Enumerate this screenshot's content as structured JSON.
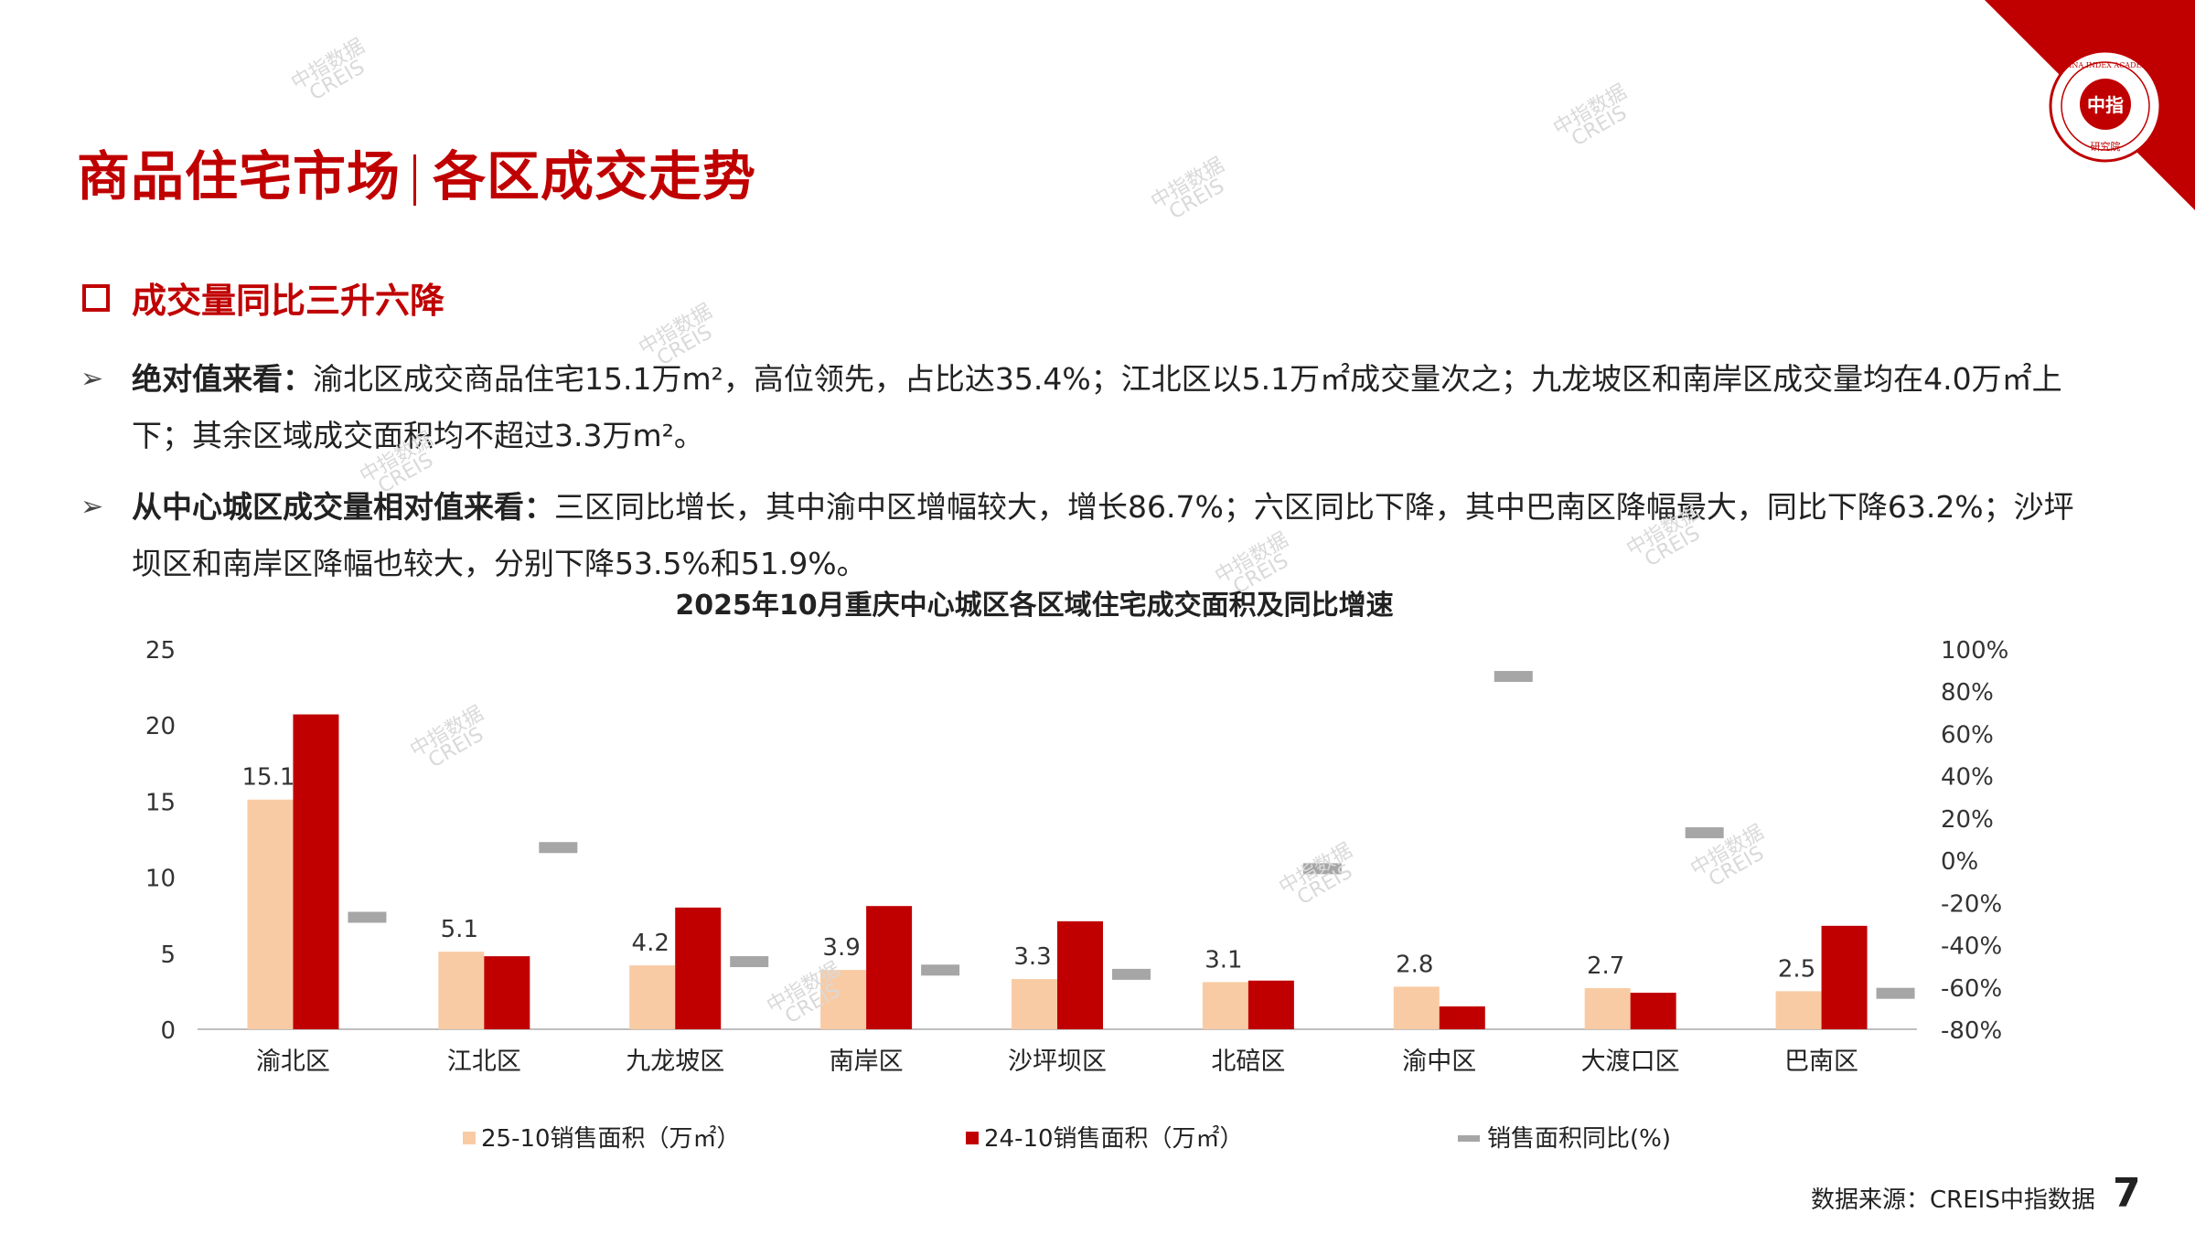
{
  "header": {
    "title_left": "商品住宅市场",
    "title_right": "各区成交走势"
  },
  "logo": {
    "text_top": "CHINA INDEX ACADEMY",
    "text_center": "中指",
    "text_bottom": "研究院"
  },
  "section": {
    "subheading": "成交量同比三升六降"
  },
  "bullets": [
    {
      "lead": "绝对值来看：",
      "text": "渝北区成交商品住宅15.1万m²，高位领先，占比达35.4%；江北区以5.1万㎡成交量次之；九龙坡区和南岸区成交量均在4.0万㎡上下；其余区域成交面积均不超过3.3万m²。"
    },
    {
      "lead": "从中心城区成交量相对值来看：",
      "text": "三区同比增长，其中渝中区增幅较大，增长86.7%；六区同比下降，其中巴南区降幅最大，同比下降63.2%；沙坪坝区和南岸区降幅也较大，分别下降53.5%和51.9%。"
    }
  ],
  "chart_data": {
    "type": "bar",
    "title": "2025年10月重庆中心城区各区域住宅成交面积及同比增速",
    "categories": [
      "渝北区",
      "江北区",
      "九龙坡区",
      "南岸区",
      "沙坪坝区",
      "北碚区",
      "渝中区",
      "大渡口区",
      "巴南区"
    ],
    "series": [
      {
        "name": "25-10销售面积（万㎡）",
        "kind": "bar",
        "axis": "left",
        "color": "#f9cba4",
        "values": [
          15.1,
          5.1,
          4.2,
          3.9,
          3.3,
          3.1,
          2.8,
          2.7,
          2.5
        ],
        "data_labels": true
      },
      {
        "name": "24-10销售面积（万㎡）",
        "kind": "bar",
        "axis": "left",
        "color": "#c00000",
        "values": [
          20.7,
          4.8,
          8.0,
          8.1,
          7.1,
          3.2,
          1.5,
          2.4,
          6.8
        ],
        "data_labels": false
      },
      {
        "name": "销售面积同比(%)",
        "kind": "marker",
        "axis": "right",
        "color": "#a6a6a6",
        "values": [
          -27,
          6,
          -48,
          -52,
          -54,
          -4,
          87,
          13,
          -63
        ]
      }
    ],
    "ylim": [
      0,
      25
    ],
    "yticks": [
      "0",
      "5",
      "10",
      "15",
      "20",
      "25"
    ],
    "y2lim": [
      -80,
      100
    ],
    "y2ticks": [
      "-80%",
      "-60%",
      "-40%",
      "-20%",
      "0%",
      "20%",
      "40%",
      "60%",
      "80%",
      "100%"
    ],
    "legend": "bottom",
    "grid": false
  },
  "footer": {
    "source": "数据来源：CREIS中指数据",
    "page": "7"
  },
  "watermark": {
    "line1": "中指数据",
    "line2": "CREIS"
  },
  "colors": {
    "brand": "#c00000",
    "bar_2025": "#f9cba4",
    "bar_2024": "#c00000",
    "marker": "#a6a6a6"
  }
}
